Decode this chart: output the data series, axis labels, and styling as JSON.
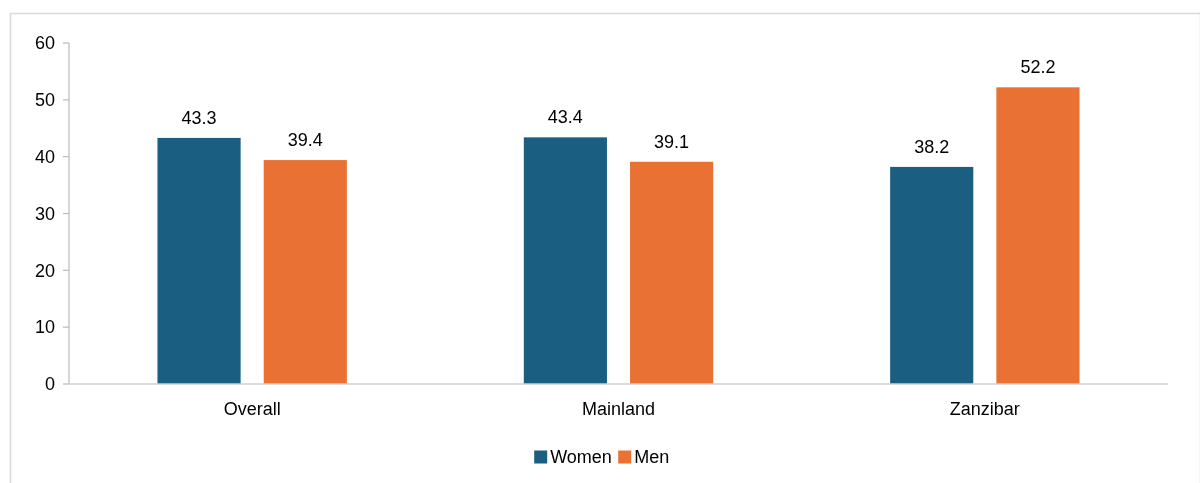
{
  "chart_data": {
    "type": "bar",
    "categories": [
      "Overall",
      "Mainland",
      "Zanzibar"
    ],
    "series": [
      {
        "name": "Women",
        "color": "#1a5f82",
        "values": [
          43.3,
          43.4,
          38.2
        ]
      },
      {
        "name": "Men",
        "color": "#e97133",
        "values": [
          39.4,
          39.1,
          52.2
        ]
      }
    ],
    "ylim": [
      0,
      60
    ],
    "yticks": [
      0,
      10,
      20,
      30,
      40,
      50,
      60
    ],
    "data_labels": true,
    "grid": false,
    "legend": "bottom"
  }
}
